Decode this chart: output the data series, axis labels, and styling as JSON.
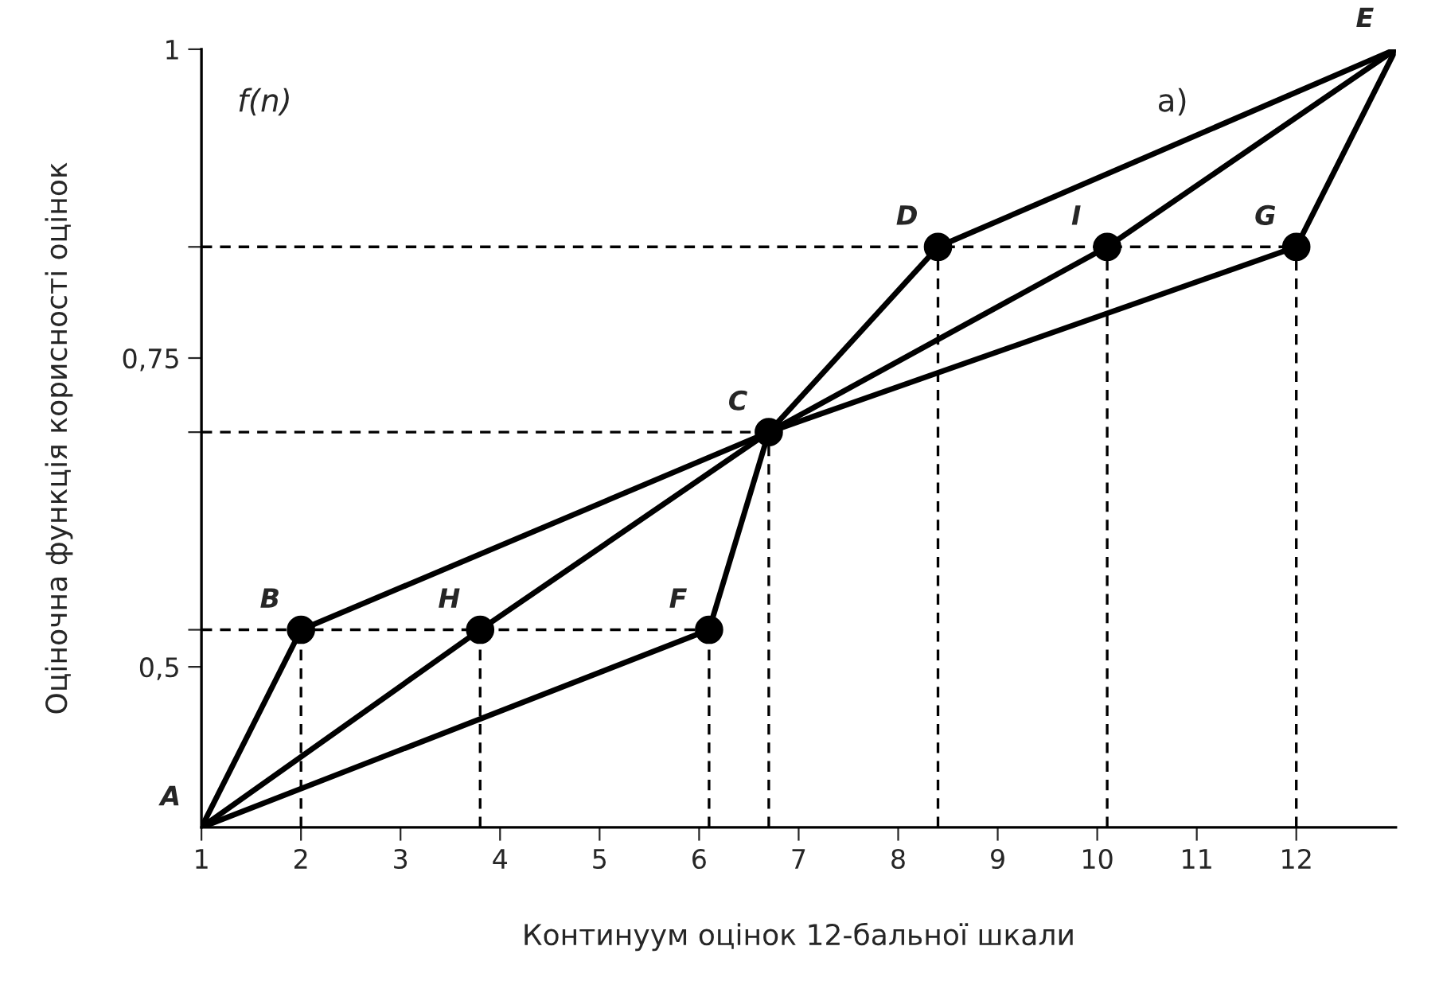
{
  "chart_data": {
    "type": "line",
    "xlabel": "Континуум оцінок 12-бальної шкали",
    "ylabel": "Оціночна функція корисності оцінок",
    "xlim": [
      1,
      13
    ],
    "xticks": [
      1,
      2,
      3,
      4,
      5,
      6,
      7,
      8,
      9,
      10,
      11,
      12
    ],
    "ylim": [
      0.37,
      1
    ],
    "yticks": [
      {
        "value": 0.5,
        "label": "0,5"
      },
      {
        "value": 0.53,
        "label": null
      },
      {
        "value": 0.69,
        "label": null
      },
      {
        "value": 0.75,
        "label": "0,75"
      },
      {
        "value": 0.84,
        "label": null
      },
      {
        "value": 1,
        "label": "1"
      }
    ],
    "grid": false,
    "legend": false,
    "marker": "none",
    "line_style": "solid",
    "series": [
      {
        "color": "#000000",
        "x": [
          1,
          2,
          6.7,
          8.4,
          13
        ],
        "values": [
          0.37,
          0.53,
          0.69,
          0.84,
          1
        ]
      },
      {
        "color": "#000000",
        "x": [
          1,
          3.8,
          6.7,
          10.1,
          13
        ],
        "values": [
          0.37,
          0.53,
          0.69,
          0.84,
          1
        ]
      },
      {
        "color": "#000000",
        "x": [
          1,
          6.1,
          6.7,
          12,
          13
        ],
        "values": [
          0.37,
          0.53,
          0.69,
          0.84,
          1
        ]
      },
      {
        "type": "scatter",
        "marker": "circle",
        "color": "#000000",
        "x": [
          2,
          3.8,
          6.1,
          6.7,
          8.4,
          10.1,
          12
        ],
        "values": [
          0.53,
          0.53,
          0.53,
          0.69,
          0.84,
          0.84,
          0.84
        ]
      },
      {
        "color": "#000000",
        "line_style": "dashed",
        "x": [
          1,
          6.1
        ],
        "values": [
          0.53,
          0.53
        ]
      },
      {
        "color": "#000000",
        "line_style": "dashed",
        "x": [
          1,
          6.7
        ],
        "values": [
          0.69,
          0.69
        ]
      },
      {
        "color": "#000000",
        "line_style": "dashed",
        "x": [
          1,
          12
        ],
        "values": [
          0.84,
          0.84
        ]
      },
      {
        "color": "#000000",
        "line_style": "dashed",
        "x": [
          2,
          2
        ],
        "values": [
          0.37,
          0.53
        ]
      },
      {
        "color": "#000000",
        "line_style": "dashed",
        "x": [
          3.8,
          3.8
        ],
        "values": [
          0.37,
          0.53
        ]
      },
      {
        "color": "#000000",
        "line_style": "dashed",
        "x": [
          6.1,
          6.1
        ],
        "values": [
          0.37,
          0.53
        ]
      },
      {
        "color": "#000000",
        "line_style": "dashed",
        "x": [
          6.7,
          6.7
        ],
        "values": [
          0.37,
          0.69
        ]
      },
      {
        "color": "#000000",
        "line_style": "dashed",
        "x": [
          8.4,
          8.4
        ],
        "values": [
          0.37,
          0.84
        ]
      },
      {
        "color": "#000000",
        "line_style": "dashed",
        "x": [
          10.1,
          10.1
        ],
        "values": [
          0.37,
          0.84
        ]
      },
      {
        "color": "#000000",
        "line_style": "dashed",
        "x": [
          12,
          12
        ],
        "values": [
          0.37,
          0.84
        ]
      }
    ],
    "annotations": [
      "f(n)",
      "а)",
      {
        "text": "A",
        "x": 1,
        "y": 0.37
      },
      {
        "text": "B",
        "x": 2,
        "y": 0.53
      },
      {
        "text": "H",
        "x": 3.8,
        "y": 0.53
      },
      {
        "text": "F",
        "x": 6.1,
        "y": 0.53
      },
      {
        "text": "C",
        "x": 6.7,
        "y": 0.69
      },
      {
        "text": "D",
        "x": 8.4,
        "y": 0.84
      },
      {
        "text": "I",
        "x": 10.1,
        "y": 0.84
      },
      {
        "text": "G",
        "x": 12,
        "y": 0.84
      },
      {
        "text": "E",
        "x": 13,
        "y": 1
      }
    ]
  }
}
